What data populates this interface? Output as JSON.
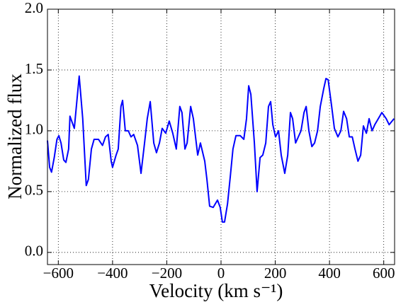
{
  "chart_data": {
    "type": "line",
    "xlabel": "Velocity (km s⁻¹)",
    "ylabel": "Normalized flux",
    "xlim": [
      -640,
      640
    ],
    "ylim": [
      -0.1,
      2.0
    ],
    "xticks": [
      {
        "value": -600,
        "label": "−600"
      },
      {
        "value": -400,
        "label": "−400"
      },
      {
        "value": -200,
        "label": "−200"
      },
      0,
      200,
      400,
      600
    ],
    "yticks": [
      {
        "value": 0,
        "label": "0.0"
      },
      {
        "value": 0.5,
        "label": "0.5"
      },
      {
        "value": 1,
        "label": "1.0"
      },
      {
        "value": 1.5,
        "label": "1.5"
      },
      {
        "value": 2,
        "label": "2.0"
      }
    ],
    "grid": true,
    "series": [
      {
        "color": "#0000ff",
        "x": [
          -640,
          -632,
          -625,
          -615,
          -605,
          -598,
          -590,
          -580,
          -572,
          -562,
          -557,
          -541,
          -523,
          -510,
          -497,
          -489,
          -478,
          -468,
          -452,
          -437,
          -426,
          -416,
          -405,
          -400,
          -387,
          -379,
          -369,
          -363,
          -353,
          -342,
          -332,
          -322,
          -308,
          -295,
          -282,
          -272,
          -261,
          -248,
          -238,
          -227,
          -217,
          -204,
          -191,
          -178,
          -165,
          -152,
          -144,
          -133,
          -125,
          -112,
          -102,
          -86,
          -76,
          -60,
          -52,
          -42,
          -29,
          -13,
          -3,
          5,
          13,
          24,
          34,
          44,
          55,
          71,
          84,
          94,
          102,
          110,
          123,
          133,
          144,
          154,
          165,
          175,
          183,
          191,
          201,
          212,
          222,
          235,
          246,
          256,
          264,
          275,
          285,
          295,
          306,
          314,
          324,
          335,
          345,
          356,
          366,
          379,
          387,
          395,
          408,
          418,
          431,
          442,
          452,
          463,
          473,
          484,
          494,
          505,
          515,
          525,
          536,
          546,
          557,
          567,
          580,
          593,
          609,
          620,
          638
        ],
        "values": [
          0.92,
          0.7,
          0.66,
          0.78,
          0.93,
          0.96,
          0.9,
          0.76,
          0.74,
          0.85,
          1.12,
          1.02,
          1.45,
          1.1,
          0.55,
          0.6,
          0.85,
          0.93,
          0.93,
          0.88,
          0.95,
          0.97,
          0.75,
          0.7,
          0.8,
          0.85,
          1.2,
          1.25,
          1.0,
          1.0,
          0.95,
          0.97,
          0.88,
          0.65,
          0.9,
          1.1,
          1.24,
          0.9,
          0.82,
          0.9,
          1.02,
          0.98,
          1.08,
          0.98,
          0.85,
          1.2,
          1.15,
          0.85,
          0.9,
          1.2,
          1.1,
          0.8,
          0.9,
          0.75,
          0.6,
          0.38,
          0.37,
          0.43,
          0.37,
          0.25,
          0.25,
          0.4,
          0.62,
          0.85,
          0.96,
          0.96,
          0.93,
          1.1,
          1.37,
          1.3,
          0.9,
          0.5,
          0.78,
          0.8,
          0.9,
          1.2,
          1.24,
          1.05,
          0.95,
          1.0,
          0.8,
          0.65,
          0.8,
          1.15,
          1.1,
          0.9,
          0.95,
          1.0,
          1.15,
          1.2,
          1.0,
          0.87,
          0.9,
          1.0,
          1.2,
          1.35,
          1.43,
          1.42,
          1.2,
          1.02,
          0.95,
          1.0,
          1.16,
          1.1,
          0.95,
          0.95,
          0.85,
          0.75,
          0.8,
          1.04,
          0.98,
          1.1,
          1.0,
          1.05,
          1.1,
          1.15,
          1.1,
          1.05,
          1.1
        ]
      }
    ]
  }
}
